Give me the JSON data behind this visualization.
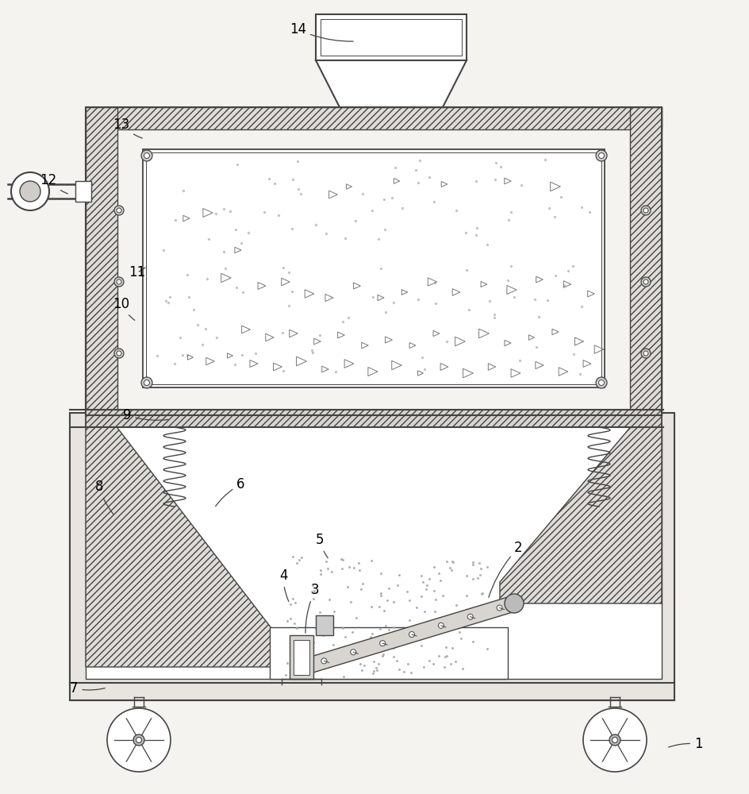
{
  "bg_color": "#f5f3f0",
  "line_color": "#444444",
  "lw_main": 1.5,
  "lw_thin": 0.9,
  "labels_data": [
    [
      "1",
      875,
      942,
      840,
      942
    ],
    [
      "2",
      648,
      695,
      615,
      755
    ],
    [
      "3",
      392,
      748,
      385,
      800
    ],
    [
      "4",
      352,
      730,
      365,
      760
    ],
    [
      "5",
      398,
      685,
      415,
      705
    ],
    [
      "6",
      298,
      615,
      270,
      640
    ],
    [
      "7",
      88,
      872,
      135,
      866
    ],
    [
      "8",
      120,
      618,
      145,
      650
    ],
    [
      "9",
      155,
      528,
      215,
      528
    ],
    [
      "10",
      142,
      388,
      172,
      405
    ],
    [
      "11",
      162,
      348,
      185,
      335
    ],
    [
      "12",
      50,
      232,
      88,
      245
    ],
    [
      "13",
      142,
      162,
      182,
      175
    ],
    [
      "14",
      365,
      42,
      448,
      52
    ]
  ]
}
